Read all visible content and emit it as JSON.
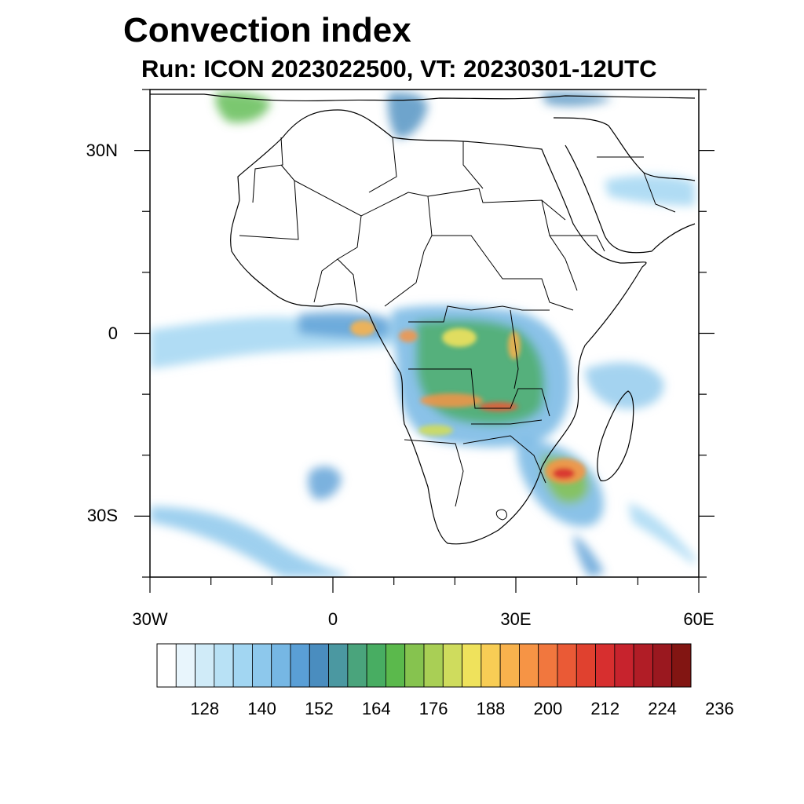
{
  "header": {
    "title": "Convection index",
    "subtitle": "Run: ICON 2023022500,  VT: 20230301-12UTC"
  },
  "map": {
    "region": "Africa",
    "projection": "lat-lon",
    "lon_range": [
      -30,
      60
    ],
    "lat_range": [
      -40,
      40
    ],
    "lat_labels": [
      {
        "text": "30N",
        "lat": 30
      },
      {
        "text": "0",
        "lat": 0
      },
      {
        "text": "30S",
        "lat": -30
      }
    ],
    "lon_labels": [
      {
        "text": "30W",
        "lon": -30
      },
      {
        "text": "0",
        "lon": 0
      },
      {
        "text": "30E",
        "lon": 30
      },
      {
        "text": "60E",
        "lon": 60
      }
    ]
  },
  "colorbar": {
    "label_values": [
      "128",
      "140",
      "152",
      "164",
      "176",
      "188",
      "200",
      "212",
      "224",
      "236"
    ],
    "colors": [
      "#ffffff",
      "#e8f5fc",
      "#d0ebf8",
      "#b8e1f5",
      "#a2d6f2",
      "#8dc8ec",
      "#76b7e4",
      "#5a9fd6",
      "#4a8dbf",
      "#4b98a1",
      "#4aa47c",
      "#48ad62",
      "#5bb94c",
      "#86c34f",
      "#a9cf55",
      "#cfdc5d",
      "#efe25c",
      "#f8cd55",
      "#f8b24d",
      "#f69445",
      "#f1773e",
      "#ea5a36",
      "#e0412f",
      "#d72f2f",
      "#c7232d",
      "#b11d26",
      "#9a181f",
      "#821512"
    ]
  }
}
